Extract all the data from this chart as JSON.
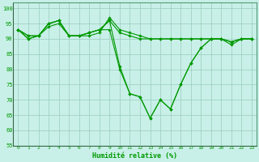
{
  "title": "",
  "xlabel": "Humidité relative (%)",
  "ylabel": "",
  "background_color": "#c8f0e8",
  "grid_color": "#99ccbb",
  "line_color": "#009900",
  "marker_color": "#009900",
  "xlim": [
    -0.5,
    23.5
  ],
  "ylim": [
    55,
    102
  ],
  "yticks": [
    55,
    60,
    65,
    70,
    75,
    80,
    85,
    90,
    95,
    100
  ],
  "xticks": [
    0,
    1,
    2,
    3,
    4,
    5,
    6,
    7,
    8,
    9,
    10,
    11,
    12,
    13,
    14,
    15,
    16,
    17,
    18,
    19,
    20,
    21,
    22,
    23
  ],
  "series": [
    [
      93,
      90,
      91,
      94,
      95,
      91,
      91,
      91,
      92,
      97,
      93,
      92,
      91,
      90,
      90,
      90,
      90,
      90,
      90,
      90,
      90,
      89,
      90,
      90
    ],
    [
      93,
      91,
      91,
      95,
      96,
      91,
      91,
      92,
      93,
      96,
      92,
      91,
      90,
      90,
      90,
      90,
      90,
      90,
      90,
      90,
      90,
      89,
      90,
      90
    ],
    [
      93,
      90,
      91,
      95,
      96,
      91,
      91,
      92,
      93,
      93,
      80,
      72,
      71,
      64,
      70,
      67,
      75,
      82,
      87,
      90,
      90,
      88,
      90,
      90
    ],
    [
      93,
      91,
      91,
      95,
      96,
      91,
      91,
      92,
      93,
      96,
      81,
      72,
      71,
      64,
      70,
      67,
      75,
      82,
      87,
      90,
      90,
      89,
      90,
      90
    ]
  ]
}
